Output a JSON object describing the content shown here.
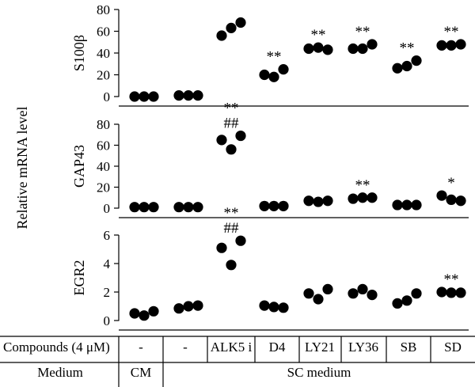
{
  "chart_data": {
    "type": "scatter",
    "ylabel": "Relative mRNA level",
    "categories": [
      "CM",
      "SC medium",
      "ALK5 i",
      "D4",
      "LY21",
      "LY36",
      "SB",
      "SD"
    ],
    "panels": [
      {
        "name": "S100β",
        "ylim": [
          0,
          80
        ],
        "yticks": [
          "0",
          "20",
          "40",
          "60",
          "80"
        ],
        "points": [
          [
            0,
            0,
            0
          ],
          [
            1,
            1,
            1
          ],
          [
            56,
            63,
            68
          ],
          [
            20,
            18,
            25
          ],
          [
            44,
            45,
            43
          ],
          [
            44,
            44,
            48
          ],
          [
            26,
            28,
            33
          ],
          [
            47,
            47,
            48
          ]
        ],
        "annotations": [
          {
            "group": 3,
            "text": "**"
          },
          {
            "group": 4,
            "text": "**"
          },
          {
            "group": 5,
            "text": "**"
          },
          {
            "group": 6,
            "text": "**"
          },
          {
            "group": 7,
            "text": "**"
          }
        ]
      },
      {
        "name": "GAP43",
        "ylim": [
          0,
          80
        ],
        "yticks": [
          "0",
          "20",
          "40",
          "60",
          "80"
        ],
        "points": [
          [
            1,
            1,
            1
          ],
          [
            1,
            1,
            1
          ],
          [
            65,
            56,
            69
          ],
          [
            2,
            2,
            2
          ],
          [
            7,
            6,
            7
          ],
          [
            9,
            10,
            10
          ],
          [
            3,
            3,
            3
          ],
          [
            12,
            8,
            7
          ]
        ],
        "annotations": [
          {
            "group": 2,
            "text": "**",
            "line": 2
          },
          {
            "group": 2,
            "text": "##",
            "line": 1
          },
          {
            "group": 5,
            "text": "**"
          },
          {
            "group": 7,
            "text": "*"
          }
        ]
      },
      {
        "name": "EGR2",
        "ylim": [
          0,
          6
        ],
        "yticks": [
          "0",
          "2",
          "4",
          "6"
        ],
        "points": [
          [
            0.5,
            0.35,
            0.65
          ],
          [
            0.85,
            1.0,
            1.05
          ],
          [
            5.1,
            3.9,
            5.6
          ],
          [
            1.05,
            0.95,
            0.9
          ],
          [
            1.9,
            1.5,
            2.2
          ],
          [
            1.9,
            2.2,
            1.8
          ],
          [
            1.2,
            1.4,
            1.9
          ],
          [
            2.0,
            1.95,
            1.95
          ]
        ],
        "annotations": [
          {
            "group": 2,
            "text": "**",
            "line": 2
          },
          {
            "group": 2,
            "text": "##",
            "line": 1
          },
          {
            "group": 7,
            "text": "**"
          }
        ]
      }
    ]
  },
  "table": {
    "row1_label": "Compounds (4 μM)",
    "row1_cells": [
      "-",
      "-",
      "ALK5 i",
      "D4",
      "LY21",
      "LY36",
      "SB",
      "SD"
    ],
    "row2_label": "Medium",
    "row2_cells": [
      "CM",
      "SC medium"
    ]
  }
}
